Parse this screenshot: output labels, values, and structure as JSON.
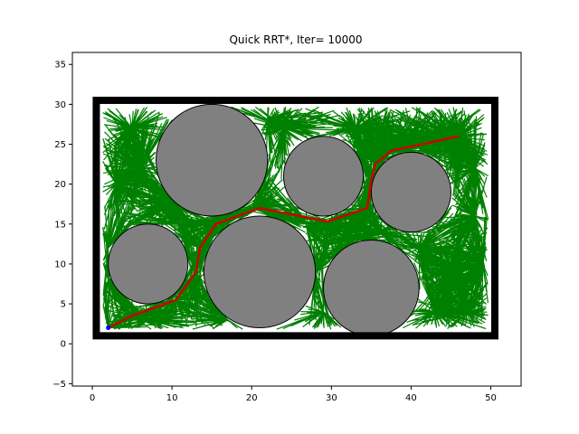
{
  "chart_data": {
    "type": "scatter",
    "title": "Quick RRT*, Iter= 10000",
    "xlabel": "",
    "ylabel": "",
    "xlim": [
      -2.5,
      53.8
    ],
    "ylim": [
      -5.3,
      36.5
    ],
    "x_ticks": [
      0,
      10,
      20,
      30,
      40,
      50
    ],
    "y_ticks": [
      -5,
      0,
      5,
      10,
      15,
      20,
      25,
      30,
      35
    ],
    "grid": false,
    "colors": {
      "tree": "#008000",
      "path": "#cc0000",
      "obstacle_fill": "#808080",
      "obstacle_edge": "#000000",
      "boundary": "#000000",
      "start": "#0000ff"
    },
    "boundary": {
      "x": [
        0.5,
        50.5
      ],
      "y": [
        1.0,
        30.5
      ]
    },
    "obstacles": [
      {
        "cx": 15,
        "cy": 23,
        "r": 7
      },
      {
        "cx": 29,
        "cy": 21,
        "r": 5
      },
      {
        "cx": 40,
        "cy": 19,
        "r": 5
      },
      {
        "cx": 7,
        "cy": 10,
        "r": 5
      },
      {
        "cx": 21,
        "cy": 9,
        "r": 7
      },
      {
        "cx": 35,
        "cy": 7,
        "r": 6
      }
    ],
    "path": {
      "x": [
        2,
        5,
        10.5,
        13,
        13.5,
        15.5,
        21,
        29.5,
        34.5,
        35,
        35.5,
        37.5,
        40.5,
        46
      ],
      "y": [
        2,
        3.5,
        5.5,
        9,
        12,
        15,
        17,
        15.3,
        17,
        20.5,
        22.5,
        24.2,
        24.8,
        26
      ]
    },
    "start": {
      "x": 2,
      "y": 2
    },
    "goal": {
      "x": 46,
      "y": 26
    }
  }
}
